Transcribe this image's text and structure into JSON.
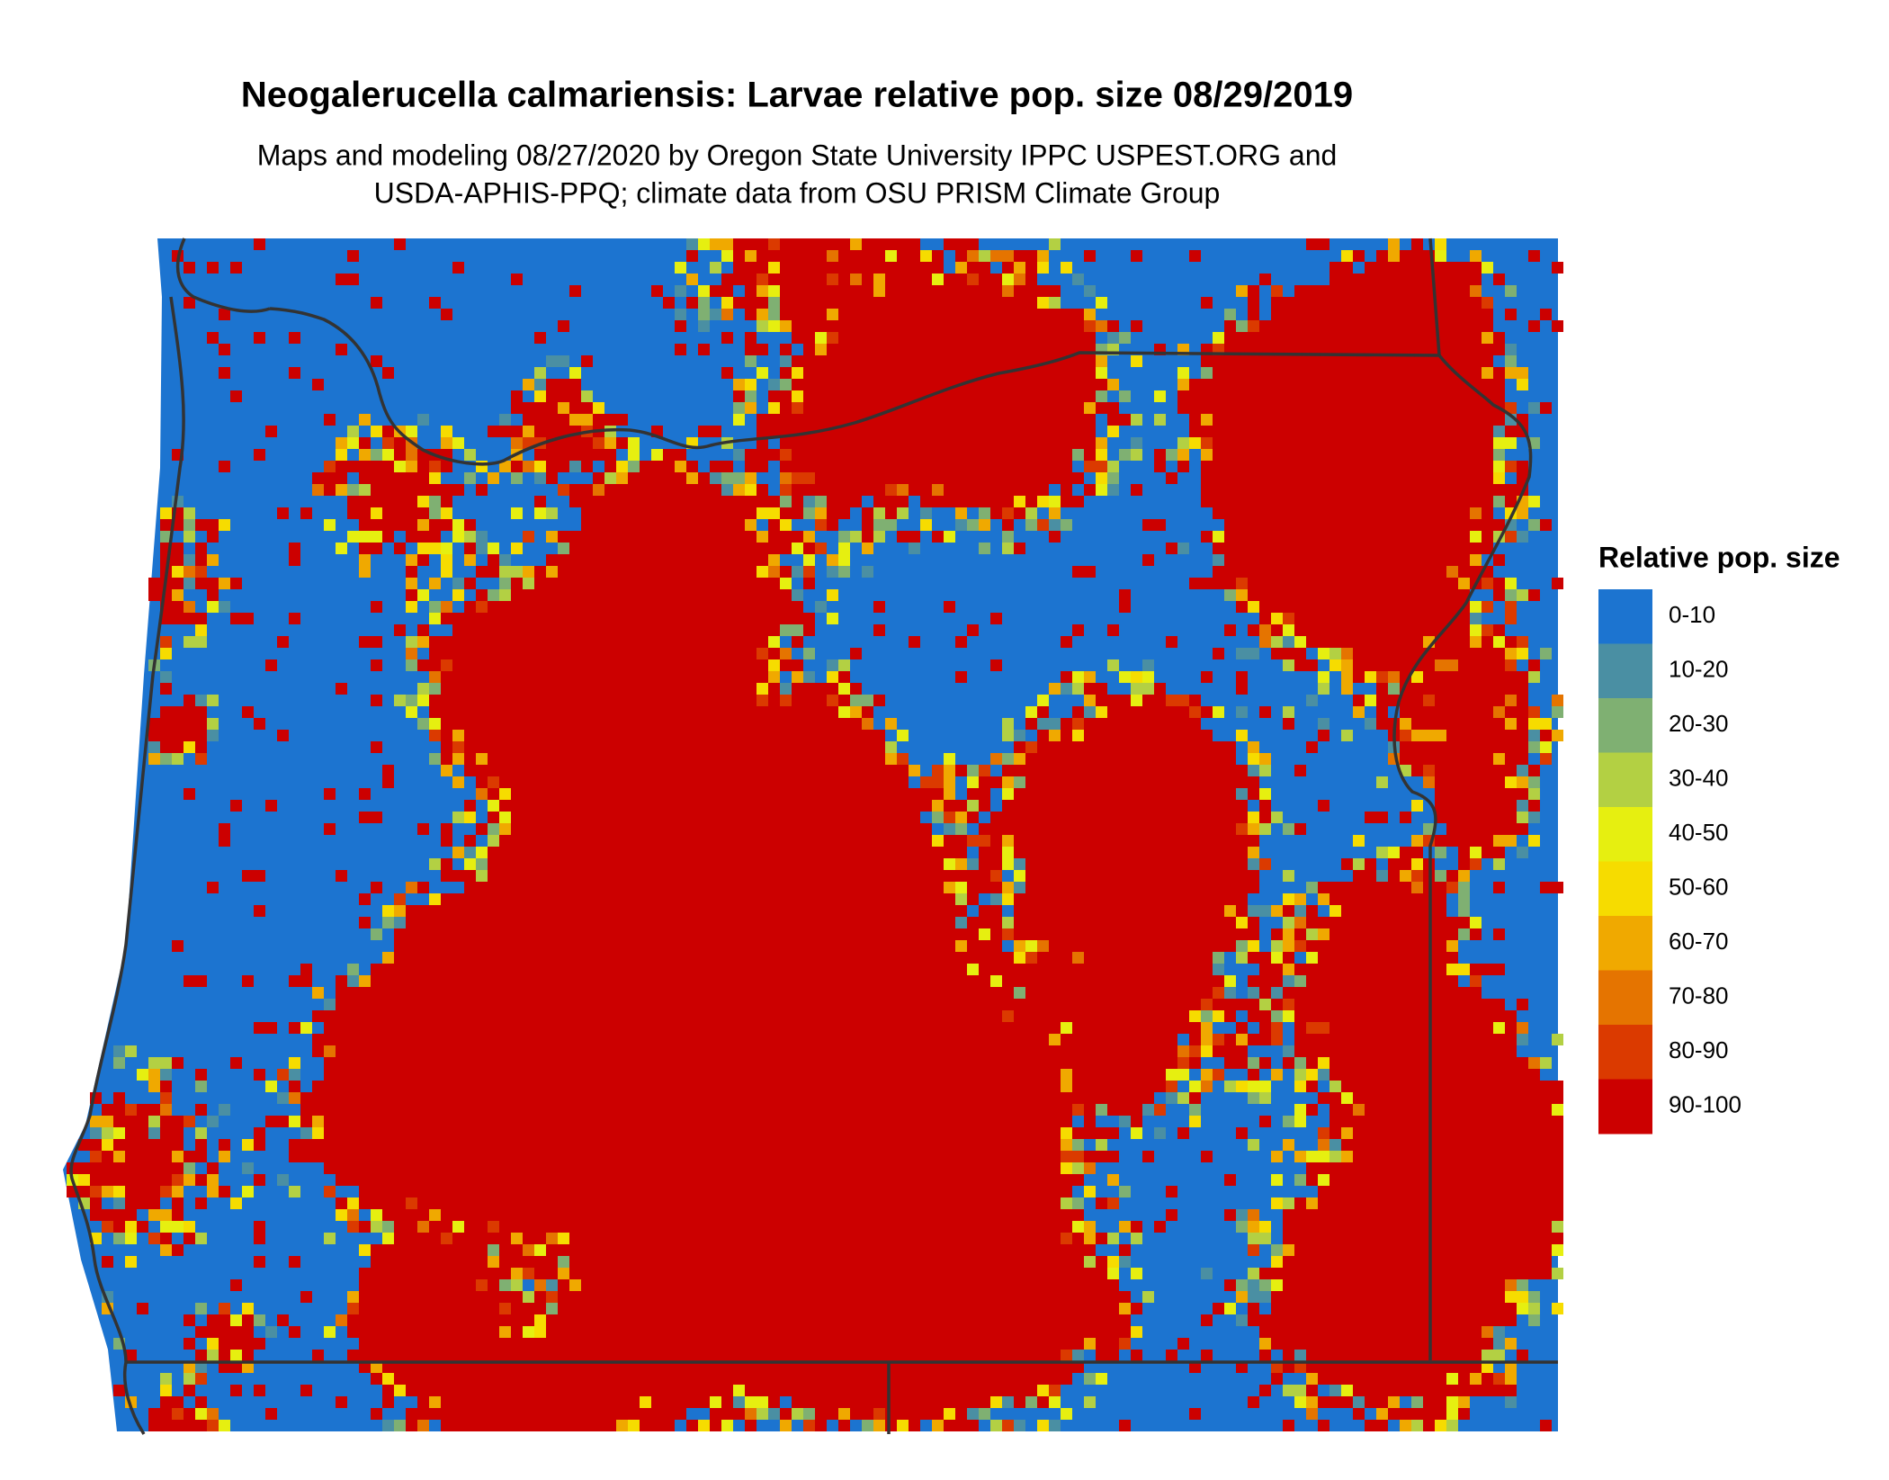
{
  "title": "Neogalerucella calmariensis: Larvae relative pop. size 08/29/2019",
  "subtitle": [
    "Maps and modeling 08/27/2020 by Oregon State University IPPC USPEST.ORG and",
    "USDA-APHIS-PPQ; climate data from OSU PRISM Climate Group"
  ],
  "legend": {
    "title": "Relative pop. size",
    "items": [
      {
        "label": "0-10",
        "color": "#1c74d0"
      },
      {
        "label": "10-20",
        "color": "#4a8fa3"
      },
      {
        "label": "20-30",
        "color": "#7fb072"
      },
      {
        "label": "30-40",
        "color": "#b3d043"
      },
      {
        "label": "40-50",
        "color": "#e6ef10"
      },
      {
        "label": "50-60",
        "color": "#f6dc00"
      },
      {
        "label": "60-70",
        "color": "#f0a900"
      },
      {
        "label": "70-80",
        "color": "#e57400"
      },
      {
        "label": "80-90",
        "color": "#db3a00"
      },
      {
        "label": "90-100",
        "color": "#cc0000"
      }
    ]
  }
}
